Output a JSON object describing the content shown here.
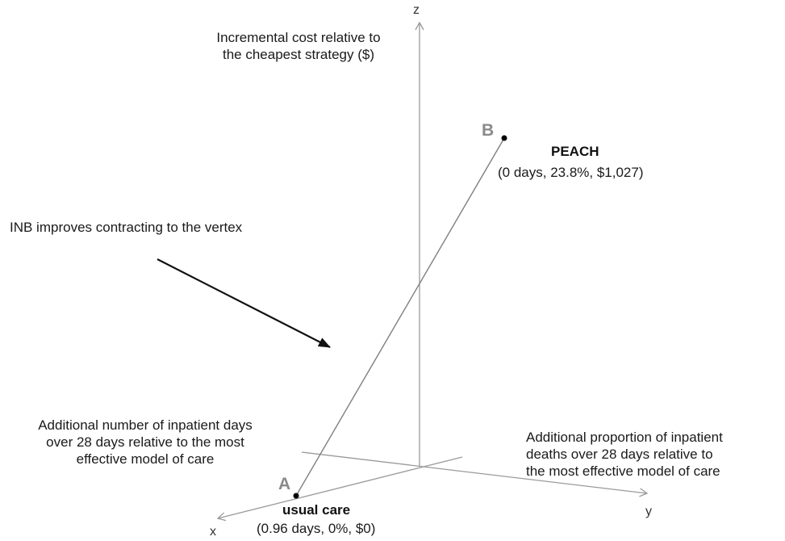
{
  "axes": {
    "x": {
      "letter": "x",
      "label_lines": [
        "Additional number of inpatient days",
        "over 28 days relative to the most",
        "effective model of care"
      ]
    },
    "y": {
      "letter": "y",
      "label_lines": [
        "Additional proportion of inpatient",
        "deaths over 28 days relative to",
        "the most effective model of care"
      ]
    },
    "z": {
      "letter": "z",
      "label_lines": [
        "Incremental cost relative to",
        "the cheapest strategy ($)"
      ]
    }
  },
  "points": {
    "A": {
      "letter": "A",
      "name": "usual care",
      "values": "(0.96 days, 0%, $0)"
    },
    "B": {
      "letter": "B",
      "name": "PEACH",
      "values": "(0 days, 23.8%, $1,027)"
    }
  },
  "annotation": {
    "text": "INB improves contracting to the vertex"
  },
  "colors": {
    "axis": "#9a9a9a",
    "segment": "#7f7f7f",
    "arrow": "#111111",
    "point": "#000000",
    "point_letter": "#8a8a8a"
  }
}
